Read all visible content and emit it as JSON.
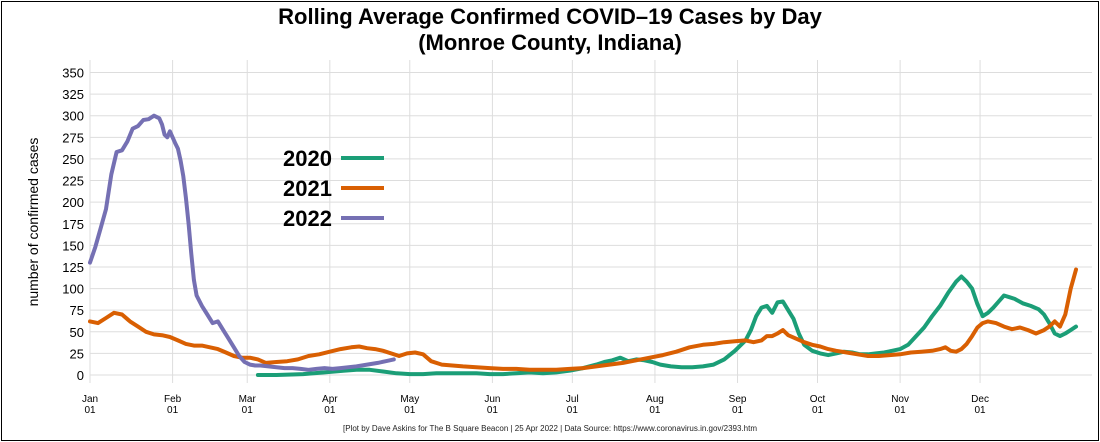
{
  "chart_data": {
    "type": "line",
    "title_line1": "Rolling Average Confirmed COVID–19 Cases by Day",
    "title_line2": "(Monroe County, Indiana)",
    "xlabel": "",
    "ylabel": "number of confirmed cases",
    "ylim": [
      0,
      350
    ],
    "xlim": [
      0,
      364
    ],
    "y_ticks": [
      0,
      25,
      50,
      75,
      100,
      125,
      150,
      175,
      200,
      225,
      250,
      275,
      300,
      325,
      350
    ],
    "x_ticks": [
      {
        "day": 0,
        "month": "Jan",
        "date": "01"
      },
      {
        "day": 31,
        "month": "Feb",
        "date": "01"
      },
      {
        "day": 59,
        "month": "Mar",
        "date": "01"
      },
      {
        "day": 90,
        "month": "Apr",
        "date": "01"
      },
      {
        "day": 120,
        "month": "May",
        "date": "01"
      },
      {
        "day": 151,
        "month": "Jun",
        "date": "01"
      },
      {
        "day": 181,
        "month": "Jul",
        "date": "01"
      },
      {
        "day": 212,
        "month": "Aug",
        "date": "01"
      },
      {
        "day": 243,
        "month": "Sep",
        "date": "01"
      },
      {
        "day": 273,
        "month": "Oct",
        "date": "01"
      },
      {
        "day": 304,
        "month": "Nov",
        "date": "01"
      },
      {
        "day": 334,
        "month": "Dec",
        "date": "01"
      }
    ],
    "grid": true,
    "legend_position": "upper-left",
    "series": [
      {
        "name": "2020",
        "color": "#1b9e77",
        "points": [
          [
            63,
            0
          ],
          [
            70,
            0
          ],
          [
            80,
            1
          ],
          [
            88,
            3
          ],
          [
            95,
            5
          ],
          [
            100,
            6
          ],
          [
            105,
            6
          ],
          [
            110,
            4
          ],
          [
            115,
            2
          ],
          [
            120,
            1
          ],
          [
            125,
            1
          ],
          [
            130,
            2
          ],
          [
            135,
            2
          ],
          [
            140,
            2
          ],
          [
            145,
            2
          ],
          [
            150,
            1
          ],
          [
            155,
            1
          ],
          [
            160,
            2
          ],
          [
            165,
            3
          ],
          [
            170,
            2
          ],
          [
            175,
            3
          ],
          [
            180,
            5
          ],
          [
            185,
            8
          ],
          [
            190,
            12
          ],
          [
            193,
            15
          ],
          [
            196,
            17
          ],
          [
            199,
            20
          ],
          [
            202,
            16
          ],
          [
            205,
            18
          ],
          [
            208,
            17
          ],
          [
            211,
            15
          ],
          [
            214,
            12
          ],
          [
            218,
            10
          ],
          [
            222,
            9
          ],
          [
            226,
            9
          ],
          [
            230,
            10
          ],
          [
            234,
            12
          ],
          [
            238,
            18
          ],
          [
            242,
            28
          ],
          [
            246,
            40
          ],
          [
            248,
            52
          ],
          [
            250,
            68
          ],
          [
            252,
            78
          ],
          [
            254,
            80
          ],
          [
            256,
            72
          ],
          [
            258,
            84
          ],
          [
            260,
            85
          ],
          [
            262,
            75
          ],
          [
            264,
            65
          ],
          [
            266,
            48
          ],
          [
            268,
            35
          ],
          [
            271,
            28
          ],
          [
            274,
            25
          ],
          [
            277,
            23
          ],
          [
            280,
            25
          ],
          [
            283,
            27
          ],
          [
            286,
            26
          ],
          [
            289,
            24
          ],
          [
            292,
            24
          ],
          [
            295,
            25
          ],
          [
            298,
            26
          ],
          [
            301,
            28
          ],
          [
            304,
            30
          ],
          [
            307,
            35
          ],
          [
            310,
            45
          ],
          [
            313,
            55
          ],
          [
            316,
            68
          ],
          [
            319,
            80
          ],
          [
            322,
            95
          ],
          [
            325,
            108
          ],
          [
            327,
            114
          ],
          [
            329,
            108
          ],
          [
            331,
            100
          ],
          [
            333,
            82
          ],
          [
            335,
            68
          ],
          [
            337,
            72
          ],
          [
            339,
            78
          ],
          [
            341,
            85
          ],
          [
            343,
            92
          ],
          [
            345,
            90
          ],
          [
            347,
            88
          ],
          [
            350,
            83
          ],
          [
            353,
            80
          ],
          [
            356,
            76
          ],
          [
            358,
            70
          ],
          [
            360,
            60
          ],
          [
            362,
            48
          ],
          [
            364,
            45
          ],
          [
            366,
            48
          ],
          [
            368,
            52
          ],
          [
            370,
            56
          ]
        ]
      },
      {
        "name": "2021",
        "color": "#d95f02",
        "points": [
          [
            0,
            62
          ],
          [
            3,
            60
          ],
          [
            6,
            66
          ],
          [
            9,
            72
          ],
          [
            12,
            70
          ],
          [
            15,
            62
          ],
          [
            18,
            56
          ],
          [
            21,
            50
          ],
          [
            24,
            47
          ],
          [
            27,
            46
          ],
          [
            30,
            44
          ],
          [
            33,
            40
          ],
          [
            36,
            36
          ],
          [
            39,
            34
          ],
          [
            42,
            34
          ],
          [
            45,
            32
          ],
          [
            48,
            30
          ],
          [
            51,
            26
          ],
          [
            54,
            22
          ],
          [
            57,
            20
          ],
          [
            60,
            20
          ],
          [
            63,
            18
          ],
          [
            66,
            14
          ],
          [
            70,
            15
          ],
          [
            74,
            16
          ],
          [
            78,
            18
          ],
          [
            82,
            22
          ],
          [
            86,
            24
          ],
          [
            90,
            27
          ],
          [
            94,
            30
          ],
          [
            98,
            32
          ],
          [
            101,
            33
          ],
          [
            104,
            31
          ],
          [
            107,
            30
          ],
          [
            110,
            28
          ],
          [
            113,
            25
          ],
          [
            116,
            22
          ],
          [
            119,
            25
          ],
          [
            122,
            26
          ],
          [
            125,
            24
          ],
          [
            128,
            16
          ],
          [
            132,
            12
          ],
          [
            136,
            11
          ],
          [
            140,
            10
          ],
          [
            145,
            9
          ],
          [
            150,
            8
          ],
          [
            155,
            7
          ],
          [
            160,
            7
          ],
          [
            165,
            6
          ],
          [
            170,
            6
          ],
          [
            175,
            6
          ],
          [
            180,
            7
          ],
          [
            185,
            8
          ],
          [
            190,
            10
          ],
          [
            195,
            12
          ],
          [
            200,
            14
          ],
          [
            205,
            17
          ],
          [
            210,
            20
          ],
          [
            215,
            23
          ],
          [
            220,
            27
          ],
          [
            225,
            32
          ],
          [
            230,
            35
          ],
          [
            234,
            36
          ],
          [
            238,
            38
          ],
          [
            242,
            39
          ],
          [
            246,
            40
          ],
          [
            249,
            38
          ],
          [
            252,
            40
          ],
          [
            254,
            45
          ],
          [
            256,
            45
          ],
          [
            258,
            48
          ],
          [
            260,
            52
          ],
          [
            262,
            46
          ],
          [
            265,
            42
          ],
          [
            268,
            38
          ],
          [
            271,
            35
          ],
          [
            274,
            33
          ],
          [
            277,
            30
          ],
          [
            280,
            28
          ],
          [
            284,
            26
          ],
          [
            288,
            24
          ],
          [
            292,
            22
          ],
          [
            296,
            22
          ],
          [
            300,
            23
          ],
          [
            304,
            24
          ],
          [
            308,
            26
          ],
          [
            312,
            27
          ],
          [
            316,
            28
          ],
          [
            319,
            30
          ],
          [
            321,
            32
          ],
          [
            323,
            28
          ],
          [
            325,
            27
          ],
          [
            327,
            30
          ],
          [
            329,
            36
          ],
          [
            331,
            45
          ],
          [
            333,
            55
          ],
          [
            335,
            60
          ],
          [
            337,
            62
          ],
          [
            340,
            60
          ],
          [
            343,
            56
          ],
          [
            346,
            53
          ],
          [
            349,
            55
          ],
          [
            352,
            52
          ],
          [
            355,
            48
          ],
          [
            358,
            52
          ],
          [
            360,
            56
          ],
          [
            362,
            62
          ],
          [
            364,
            56
          ],
          [
            366,
            70
          ],
          [
            368,
            100
          ],
          [
            370,
            122
          ]
        ]
      },
      {
        "name": "2022",
        "color": "#7570b3",
        "points": [
          [
            0,
            130
          ],
          [
            2,
            148
          ],
          [
            4,
            170
          ],
          [
            6,
            192
          ],
          [
            8,
            232
          ],
          [
            10,
            258
          ],
          [
            12,
            260
          ],
          [
            14,
            270
          ],
          [
            16,
            285
          ],
          [
            18,
            288
          ],
          [
            20,
            295
          ],
          [
            22,
            296
          ],
          [
            24,
            300
          ],
          [
            26,
            297
          ],
          [
            27,
            290
          ],
          [
            28,
            278
          ],
          [
            29,
            275
          ],
          [
            30,
            282
          ],
          [
            31,
            275
          ],
          [
            32,
            268
          ],
          [
            33,
            262
          ],
          [
            34,
            248
          ],
          [
            35,
            230
          ],
          [
            36,
            205
          ],
          [
            37,
            175
          ],
          [
            38,
            140
          ],
          [
            39,
            110
          ],
          [
            40,
            92
          ],
          [
            42,
            80
          ],
          [
            44,
            70
          ],
          [
            46,
            60
          ],
          [
            48,
            62
          ],
          [
            50,
            52
          ],
          [
            52,
            42
          ],
          [
            54,
            32
          ],
          [
            56,
            22
          ],
          [
            58,
            15
          ],
          [
            60,
            12
          ],
          [
            62,
            11
          ],
          [
            64,
            11
          ],
          [
            67,
            10
          ],
          [
            70,
            9
          ],
          [
            73,
            8
          ],
          [
            76,
            8
          ],
          [
            79,
            7
          ],
          [
            82,
            6
          ],
          [
            85,
            7
          ],
          [
            88,
            8
          ],
          [
            91,
            7
          ],
          [
            94,
            8
          ],
          [
            97,
            9
          ],
          [
            100,
            10
          ],
          [
            104,
            12
          ],
          [
            108,
            14
          ],
          [
            111,
            16
          ],
          [
            114,
            18
          ]
        ]
      }
    ]
  },
  "footer": "[Plot by Dave Askins for The B Square Beacon | 25 Apr 2022 | Data Source: https://www.coronavirus.in.gov/2393.htm"
}
